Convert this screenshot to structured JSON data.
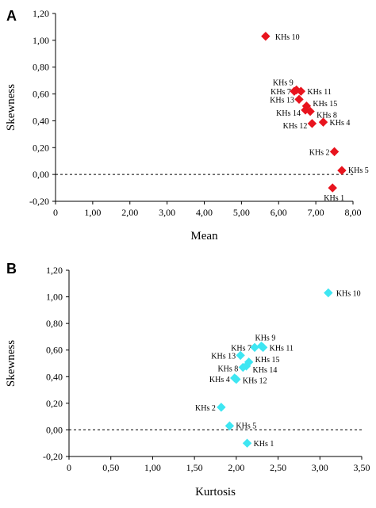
{
  "chart_data": [
    {
      "type": "scatter",
      "panel_label": "A",
      "xlabel": "Mean",
      "ylabel": "Skewness",
      "xlim": [
        0,
        8
      ],
      "ylim": [
        -0.2,
        1.2
      ],
      "x_ticks": [
        0,
        1,
        2,
        3,
        4,
        5,
        6,
        7,
        8
      ],
      "x_tick_labels": [
        "0",
        "1,00",
        "2,00",
        "3,00",
        "4,00",
        "5,00",
        "6,00",
        "7,00",
        "8,00"
      ],
      "y_ticks": [
        -0.2,
        0,
        0.2,
        0.4,
        0.6,
        0.8,
        1.0,
        1.2
      ],
      "y_tick_labels": [
        "-0,20",
        "0,00",
        "0,20",
        "0,40",
        "0,60",
        "0,80",
        "1,00",
        "1,20"
      ],
      "reference_line": {
        "y": 0,
        "style": "dashed"
      },
      "marker_color": "#e8141e",
      "marker": "diamond",
      "points": [
        {
          "label": "KHs 10",
          "x": 5.65,
          "y": 1.03
        },
        {
          "label": "KHs 9",
          "x": 6.48,
          "y": 0.63
        },
        {
          "label": "KHs 7",
          "x": 6.42,
          "y": 0.62
        },
        {
          "label": "KHs 11",
          "x": 6.6,
          "y": 0.62
        },
        {
          "label": "KHs 13",
          "x": 6.55,
          "y": 0.56
        },
        {
          "label": "KHs 15",
          "x": 6.75,
          "y": 0.51
        },
        {
          "label": "KHs 14",
          "x": 6.72,
          "y": 0.48
        },
        {
          "label": "KHs 8",
          "x": 6.85,
          "y": 0.47
        },
        {
          "label": "KHs 4",
          "x": 7.2,
          "y": 0.39
        },
        {
          "label": "KHs 12",
          "x": 6.9,
          "y": 0.38
        },
        {
          "label": "KHs 2",
          "x": 7.5,
          "y": 0.17
        },
        {
          "label": "KHs 5",
          "x": 7.7,
          "y": 0.03
        },
        {
          "label": "KHs 1",
          "x": 7.45,
          "y": -0.1
        }
      ]
    },
    {
      "type": "scatter",
      "panel_label": "B",
      "xlabel": "Kurtosis",
      "ylabel": "Skewness",
      "xlim": [
        0,
        3.5
      ],
      "ylim": [
        -0.2,
        1.2
      ],
      "x_ticks": [
        0,
        0.5,
        1.0,
        1.5,
        2.0,
        2.5,
        3.0,
        3.5
      ],
      "x_tick_labels": [
        "0",
        "0,50",
        "1,00",
        "1,50",
        "2,00",
        "2,50",
        "3,00",
        "3,50"
      ],
      "y_ticks": [
        -0.2,
        0,
        0.2,
        0.4,
        0.6,
        0.8,
        1.0,
        1.2
      ],
      "y_tick_labels": [
        "-0,20",
        "0,00",
        "0,20",
        "0,40",
        "0,60",
        "0,80",
        "1,00",
        "1,20"
      ],
      "reference_line": {
        "y": 0,
        "style": "dashed"
      },
      "marker_color": "#3ee6f2",
      "marker": "diamond",
      "points": [
        {
          "label": "KHs 10",
          "x": 3.1,
          "y": 1.03
        },
        {
          "label": "KHs 9",
          "x": 2.3,
          "y": 0.63
        },
        {
          "label": "KHs 7",
          "x": 2.22,
          "y": 0.62
        },
        {
          "label": "KHs 11",
          "x": 2.32,
          "y": 0.62
        },
        {
          "label": "KHs 13",
          "x": 2.05,
          "y": 0.56
        },
        {
          "label": "KHs 15",
          "x": 2.15,
          "y": 0.51
        },
        {
          "label": "KHs 14",
          "x": 2.12,
          "y": 0.48
        },
        {
          "label": "KHs 8",
          "x": 2.08,
          "y": 0.47
        },
        {
          "label": "KHs 4",
          "x": 1.98,
          "y": 0.39
        },
        {
          "label": "KHs 12",
          "x": 2.0,
          "y": 0.38
        },
        {
          "label": "KHs 2",
          "x": 1.82,
          "y": 0.17
        },
        {
          "label": "KHs 5",
          "x": 1.92,
          "y": 0.03
        },
        {
          "label": "KHs 1",
          "x": 2.13,
          "y": -0.1
        }
      ]
    }
  ]
}
